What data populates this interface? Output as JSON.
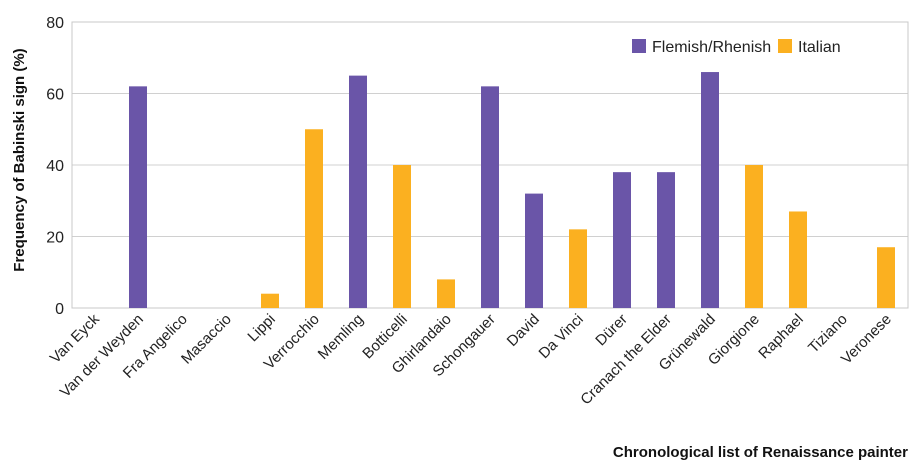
{
  "chart_data": {
    "type": "bar",
    "xlabel": "Chronological list of Renaissance painter",
    "ylabel": "Frequency of Babinski sign (%)",
    "ylim": [
      0,
      80
    ],
    "yticks": [
      "0",
      "20",
      "40",
      "60",
      "80"
    ],
    "grid": true,
    "legend_position": "top-right",
    "categories": [
      "Van Eyck",
      "Van der Weyden",
      "Fra Angelico",
      "Masaccio",
      "Lippi",
      "Verrocchio",
      "Memling",
      "Botticelli",
      "Ghirlandaio",
      "Schongauer",
      "David",
      "Da Vinci",
      "Dürer",
      "Cranach the Elder",
      "Grünewald",
      "Giorgione",
      "Raphael",
      "Tiziano",
      "Veronese"
    ],
    "series": [
      {
        "name": "Flemish/Rhenish",
        "color": "#6a55a8",
        "values": [
          0,
          62,
          null,
          null,
          null,
          null,
          65,
          null,
          null,
          62,
          32,
          null,
          38,
          38,
          66,
          null,
          null,
          null,
          null
        ]
      },
      {
        "name": "Italian",
        "color": "#fbb020",
        "values": [
          null,
          null,
          0,
          0,
          4,
          50,
          null,
          40,
          8,
          null,
          null,
          22,
          null,
          null,
          null,
          40,
          27,
          0,
          17
        ]
      }
    ]
  }
}
